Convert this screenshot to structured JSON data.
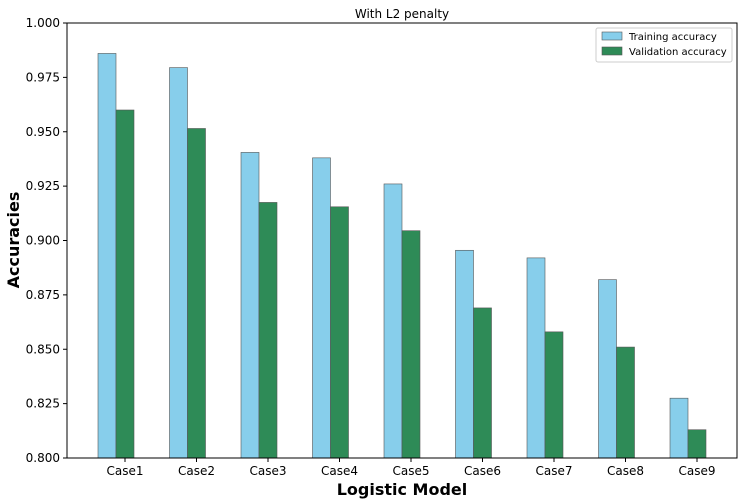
{
  "chart_data": {
    "type": "bar",
    "title": "With L2 penalty",
    "xlabel": "Logistic Model",
    "ylabel": "Accuracies",
    "categories": [
      "Case1",
      "Case2",
      "Case3",
      "Case4",
      "Case5",
      "Case6",
      "Case7",
      "Case8",
      "Case9"
    ],
    "series": [
      {
        "name": "Training accuracy",
        "color": "#87ceeb",
        "values": [
          0.986,
          0.9795,
          0.9405,
          0.938,
          0.926,
          0.8955,
          0.892,
          0.882,
          0.8275
        ]
      },
      {
        "name": "Validation accuracy",
        "color": "#2e8b57",
        "values": [
          0.96,
          0.9515,
          0.9175,
          0.9155,
          0.9045,
          0.869,
          0.858,
          0.851,
          0.813
        ]
      }
    ],
    "ylim": [
      0.8,
      1.0
    ],
    "yticks": [
      "0.800",
      "0.825",
      "0.850",
      "0.875",
      "0.900",
      "0.925",
      "0.950",
      "0.975",
      "1.000"
    ],
    "grid": false,
    "legend_position": "top-right"
  }
}
